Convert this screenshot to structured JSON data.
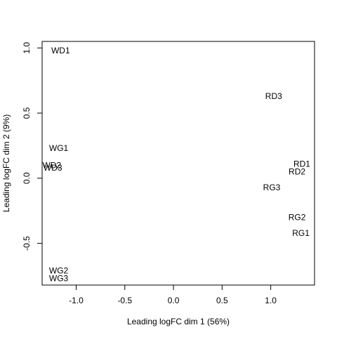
{
  "chart_data": {
    "type": "scatter",
    "xlabel": "Leading logFC dim 1 (56%)",
    "ylabel": "Leading logFC dim 2 (9%)",
    "xlim": [
      -1.35,
      1.45
    ],
    "ylim": [
      -0.82,
      1.05
    ],
    "xticks": [
      -1.0,
      -0.5,
      0.0,
      0.5,
      1.0
    ],
    "xtick_labels": [
      "-1.0",
      "-0.5",
      "0.0",
      "0.5",
      "1.0"
    ],
    "yticks": [
      -0.5,
      0.0,
      0.5,
      1.0
    ],
    "ytick_labels": [
      "-0.5",
      "0.0",
      "0.5",
      "1.0"
    ],
    "grid": false,
    "points": [
      {
        "label": "WD1",
        "x": -1.16,
        "y": 0.98
      },
      {
        "label": "RD3",
        "x": 1.03,
        "y": 0.63
      },
      {
        "label": "WG1",
        "x": -1.18,
        "y": 0.23
      },
      {
        "label": "RD1",
        "x": 1.32,
        "y": 0.11
      },
      {
        "label": "WD2",
        "x": -1.25,
        "y": 0.1
      },
      {
        "label": "WD3",
        "x": -1.24,
        "y": 0.08
      },
      {
        "label": "RD2",
        "x": 1.27,
        "y": 0.05
      },
      {
        "label": "RG3",
        "x": 1.01,
        "y": -0.07
      },
      {
        "label": "RG2",
        "x": 1.27,
        "y": -0.3
      },
      {
        "label": "RG1",
        "x": 1.31,
        "y": -0.42
      },
      {
        "label": "WG2",
        "x": -1.18,
        "y": -0.71
      },
      {
        "label": "WG3",
        "x": -1.18,
        "y": -0.77
      }
    ]
  }
}
